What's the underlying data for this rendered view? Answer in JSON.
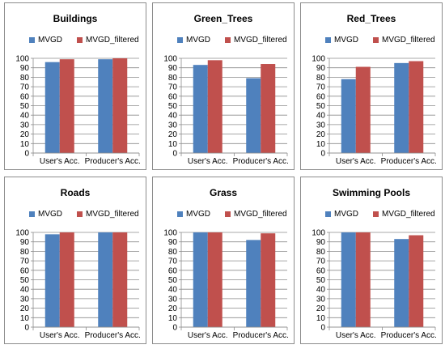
{
  "chart_data": [
    {
      "type": "bar",
      "title": "Buildings",
      "categories": [
        "User's Acc.",
        "Producer's Acc."
      ],
      "series": [
        {
          "name": "MVGD",
          "values": [
            96,
            99
          ]
        },
        {
          "name": "MVGD_filtered",
          "values": [
            99,
            100
          ]
        }
      ],
      "ylim": [
        0,
        100
      ],
      "yticks": [
        0,
        10,
        20,
        30,
        40,
        50,
        60,
        70,
        80,
        90,
        100
      ],
      "grid": true,
      "legend": "top"
    },
    {
      "type": "bar",
      "title": "Green_Trees",
      "categories": [
        "User's Acc.",
        "Producer's Acc."
      ],
      "series": [
        {
          "name": "MVGD",
          "values": [
            93,
            79
          ]
        },
        {
          "name": "MVGD_filtered",
          "values": [
            98,
            94
          ]
        }
      ],
      "ylim": [
        0,
        100
      ],
      "yticks": [
        0,
        10,
        20,
        30,
        40,
        50,
        60,
        70,
        80,
        90,
        100
      ],
      "grid": true,
      "legend": "top"
    },
    {
      "type": "bar",
      "title": "Red_Trees",
      "categories": [
        "User's Acc.",
        "Producer's Acc."
      ],
      "series": [
        {
          "name": "MVGD",
          "values": [
            78,
            95
          ]
        },
        {
          "name": "MVGD_filtered",
          "values": [
            91,
            97
          ]
        }
      ],
      "ylim": [
        0,
        100
      ],
      "yticks": [
        0,
        10,
        20,
        30,
        40,
        50,
        60,
        70,
        80,
        90,
        100
      ],
      "grid": true,
      "legend": "top"
    },
    {
      "type": "bar",
      "title": "Roads",
      "categories": [
        "User's Acc.",
        "Producer's Acc."
      ],
      "series": [
        {
          "name": "MVGD",
          "values": [
            98,
            100
          ]
        },
        {
          "name": "MVGD_filtered",
          "values": [
            100,
            100
          ]
        }
      ],
      "ylim": [
        0,
        100
      ],
      "yticks": [
        0,
        10,
        20,
        30,
        40,
        50,
        60,
        70,
        80,
        90,
        100
      ],
      "grid": true,
      "legend": "top"
    },
    {
      "type": "bar",
      "title": "Grass",
      "categories": [
        "User's Acc.",
        "Producer's Acc."
      ],
      "series": [
        {
          "name": "MVGD",
          "values": [
            100,
            92
          ]
        },
        {
          "name": "MVGD_filtered",
          "values": [
            100,
            99
          ]
        }
      ],
      "ylim": [
        0,
        100
      ],
      "yticks": [
        0,
        10,
        20,
        30,
        40,
        50,
        60,
        70,
        80,
        90,
        100
      ],
      "grid": true,
      "legend": "top"
    },
    {
      "type": "bar",
      "title": "Swimming Pools",
      "categories": [
        "User's Acc.",
        "Producer's Acc."
      ],
      "series": [
        {
          "name": "MVGD",
          "values": [
            100,
            93
          ]
        },
        {
          "name": "MVGD_filtered",
          "values": [
            100,
            97
          ]
        }
      ],
      "ylim": [
        0,
        100
      ],
      "yticks": [
        0,
        10,
        20,
        30,
        40,
        50,
        60,
        70,
        80,
        90,
        100
      ],
      "grid": true,
      "legend": "top"
    }
  ],
  "colors": {
    "MVGD": "#4f81bd",
    "MVGD_filtered": "#c0504d",
    "gridline": "#8c8c8c",
    "panel_border": "#8c8c8c"
  }
}
